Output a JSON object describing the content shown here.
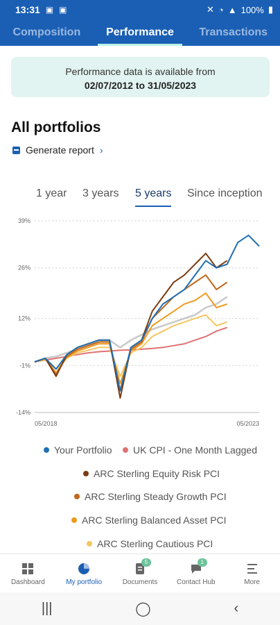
{
  "status": {
    "time": "13:31",
    "battery": "100%"
  },
  "tabs": [
    {
      "label": "Composition"
    },
    {
      "label": "Performance"
    },
    {
      "label": "Transactions"
    }
  ],
  "info": {
    "line1": "Performance data is available from",
    "line2": "02/07/2012 to 31/05/2023"
  },
  "title": "All portfolios",
  "report": {
    "label": "Generate report"
  },
  "periods": [
    {
      "label": "1 year"
    },
    {
      "label": "3 years"
    },
    {
      "label": "5 years"
    },
    {
      "label": "Since inception"
    }
  ],
  "colors": {
    "accent": "#1a5fb4",
    "portfolio": "#1f6fb2",
    "cpi": "#e07272",
    "equity": "#7a3c10",
    "steady": "#c1681a",
    "balanced": "#ee9a1e",
    "cautious": "#f5c660",
    "grey": "#c8c8c8"
  },
  "chart_data": {
    "type": "line",
    "x_labels": [
      "05/2018",
      "05/2023"
    ],
    "y_ticks": [
      39,
      26,
      12,
      -1,
      -14
    ],
    "y_tick_labels": [
      "39%",
      "26%",
      "12%",
      "-1%",
      "-14%"
    ],
    "ylim": [
      -14,
      39
    ],
    "x": [
      "2018-05",
      "2018-08",
      "2018-11",
      "2019-02",
      "2019-05",
      "2019-08",
      "2019-11",
      "2020-02",
      "2020-03",
      "2020-06",
      "2020-09",
      "2020-12",
      "2021-03",
      "2021-06",
      "2021-09",
      "2021-12",
      "2022-03",
      "2022-06",
      "2022-09",
      "2022-12",
      "2023-03",
      "2023-05"
    ],
    "series": [
      {
        "name": "Your Portfolio",
        "color": "#1f6fb2",
        "values": [
          0,
          1,
          -2,
          2,
          4,
          5,
          6,
          6,
          -8,
          4,
          6,
          12,
          16,
          18,
          20,
          24,
          28,
          26,
          27,
          33,
          35,
          32
        ]
      },
      {
        "name": "UK CPI - One Month Lagged",
        "color": "#e07272",
        "values": [
          0,
          0.5,
          1,
          1.5,
          2,
          2.5,
          2.8,
          3,
          3.2,
          3.3,
          3.5,
          3.7,
          4,
          4.5,
          5,
          6,
          7,
          8.5,
          9.5,
          null,
          null,
          null
        ]
      },
      {
        "name": "ARC Sterling Equity Risk PCI",
        "color": "#7a3c10",
        "values": [
          0,
          1,
          -4,
          2,
          4,
          5,
          6,
          6,
          -10,
          4,
          6,
          14,
          18,
          22,
          24,
          27,
          30,
          26,
          28,
          null,
          null,
          null
        ]
      },
      {
        "name": "ARC Sterling Steady Growth PCI",
        "color": "#c1681a",
        "values": [
          0,
          1,
          -3.5,
          1.5,
          3.5,
          4.5,
          5.5,
          5.5,
          -8,
          3.5,
          5.5,
          12,
          15,
          18,
          20,
          22,
          24,
          20,
          22,
          null,
          null,
          null
        ]
      },
      {
        "name": "ARC Sterling Balanced Asset PCI",
        "color": "#ee9a1e",
        "values": [
          0,
          0.8,
          -3,
          1.2,
          3,
          4,
          5,
          5,
          -6,
          3,
          5,
          10,
          12,
          14,
          16,
          17,
          19,
          15,
          16,
          null,
          null,
          null
        ]
      },
      {
        "name": "ARC Sterling Cautious PCI",
        "color": "#f5c660",
        "values": [
          0,
          0.6,
          -2,
          1,
          2.5,
          3.2,
          4,
          4,
          -4,
          2.5,
          4,
          7,
          8.5,
          10,
          11,
          12,
          13,
          10,
          11,
          null,
          null,
          null
        ]
      },
      {
        "color": "#c8c8c8",
        "values": [
          0,
          1,
          1.5,
          2.5,
          3.5,
          4.5,
          5.5,
          6,
          4,
          6,
          7.5,
          9,
          10,
          11,
          12,
          13,
          15,
          16,
          18,
          null,
          null,
          null
        ]
      }
    ]
  },
  "legend": [
    {
      "label": "Your Portfolio"
    },
    {
      "label": "UK CPI - One Month Lagged"
    },
    {
      "label": "ARC Sterling Equity Risk PCI"
    },
    {
      "label": "ARC Sterling Steady Growth PCI"
    },
    {
      "label": "ARC Sterling Balanced Asset PCI"
    },
    {
      "label": "ARC Sterling Cautious PCI"
    }
  ],
  "nav": [
    {
      "label": "Dashboard"
    },
    {
      "label": "My portfolio"
    },
    {
      "label": "Documents",
      "badge": "5"
    },
    {
      "label": "Contact Hub",
      "badge": "1"
    },
    {
      "label": "More"
    }
  ]
}
